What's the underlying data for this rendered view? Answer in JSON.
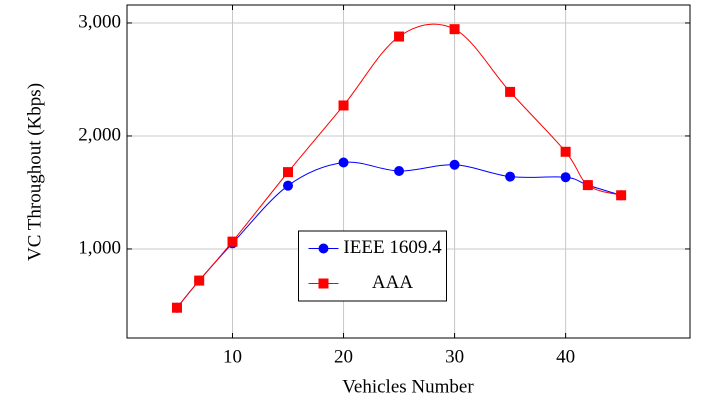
{
  "chart_data": {
    "type": "line",
    "xlabel": "Vehicles Number",
    "ylabel": "VC Throughout (Kbps)",
    "x": [
      5,
      7,
      10,
      15,
      20,
      25,
      30,
      35,
      40,
      42,
      45
    ],
    "series": [
      {
        "name": "IEEE 1609.4",
        "color": "#0000ff",
        "marker": "circle",
        "values": [
          480,
          720,
          1050,
          1560,
          1765,
          1690,
          1745,
          1640,
          1635,
          1565,
          1475
        ]
      },
      {
        "name": "AAA",
        "color": "#ff0000",
        "marker": "square",
        "values": [
          480,
          720,
          1065,
          1680,
          2270,
          2880,
          2945,
          2390,
          1860,
          1565,
          1475
        ]
      }
    ],
    "xlim": [
      0.5,
      51.2
    ],
    "xticks": [
      10,
      20,
      30,
      40
    ],
    "ylim": [
      212,
      3159
    ],
    "yticks": [
      {
        "value": 1000,
        "label": "1,000"
      },
      {
        "value": 2000,
        "label": "2,000"
      },
      {
        "value": 3000,
        "label": "3,000"
      }
    ],
    "grid": true,
    "smooth": true,
    "legend": "lower center"
  }
}
